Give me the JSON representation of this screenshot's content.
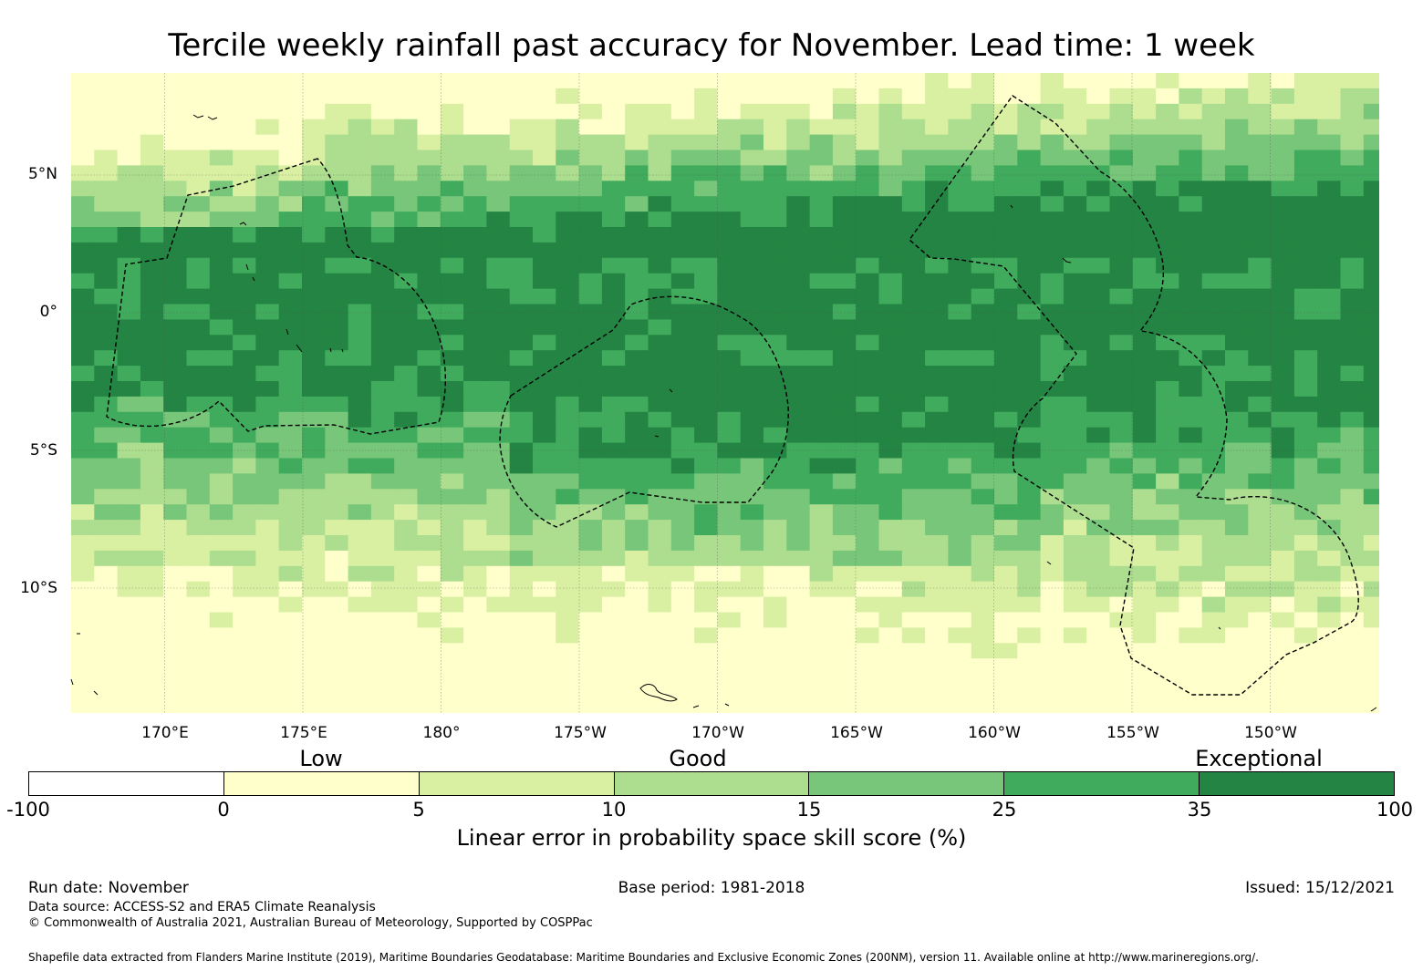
{
  "title": "Tercile weekly rainfall past accuracy for November. Lead time: 1 week",
  "map": {
    "lon_labels": [
      "170°E",
      "175°E",
      "180°",
      "175°W",
      "170°W",
      "165°W",
      "160°W",
      "155°W",
      "150°W"
    ],
    "lat_labels": [
      "5°N",
      "0°",
      "5°S",
      "10°S"
    ]
  },
  "legend": {
    "categories": [
      "Low",
      "Good",
      "Exceptional"
    ],
    "colors": [
      "#ffffff",
      "#ffffcc",
      "#d9f0a3",
      "#addd8e",
      "#78c679",
      "#41ab5d",
      "#238443"
    ],
    "ticks": [
      "-100",
      "0",
      "5",
      "10",
      "15",
      "25",
      "35",
      "100"
    ],
    "label": "Linear error in probability space skill score (%)"
  },
  "footer": {
    "run_date": "Run date: November",
    "base_period": "Base period: 1981-2018",
    "issued": "Issued: 15/12/2021",
    "data_source": "Data source: ACCESS-S2 and ERA5 Climate Reanalysis",
    "copyright": "© Commonwealth of Australia 2021, Australian Bureau of Meteorology, Supported by COSPPac",
    "shapefile": "Shapefile data extracted from Flanders Marine Institute (2019), Maritime Boundaries Geodatabase: Maritime Boundaries and Exclusive Economic Zones (200NM), version 11. Available online at http://www.marineregions.org/."
  }
}
